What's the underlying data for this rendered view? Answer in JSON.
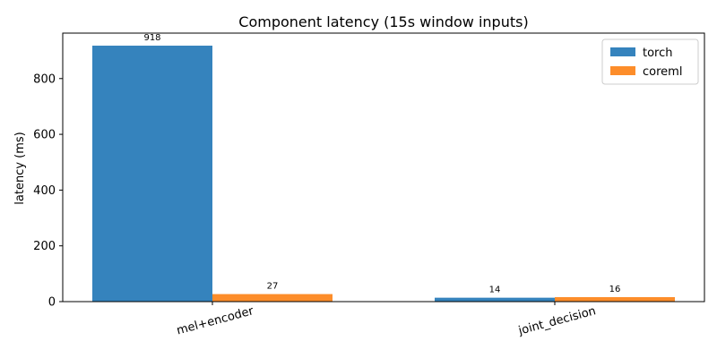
{
  "chart_data": {
    "type": "bar",
    "title": "Component latency (15s window inputs)",
    "xlabel": "",
    "ylabel": "latency (ms)",
    "categories": [
      "mel+encoder",
      "joint_decision"
    ],
    "series": [
      {
        "name": "torch",
        "values": [
          918,
          14
        ],
        "color": "#3583bd"
      },
      {
        "name": "coreml",
        "values": [
          27,
          16
        ],
        "color": "#fd8d2a"
      }
    ],
    "data_labels": [
      [
        "918",
        "14"
      ],
      [
        "27",
        "16"
      ]
    ],
    "yticks": [
      0,
      200,
      400,
      600,
      800
    ],
    "ylim": [
      0,
      963
    ],
    "grid": false,
    "legend_position": "top-right"
  }
}
